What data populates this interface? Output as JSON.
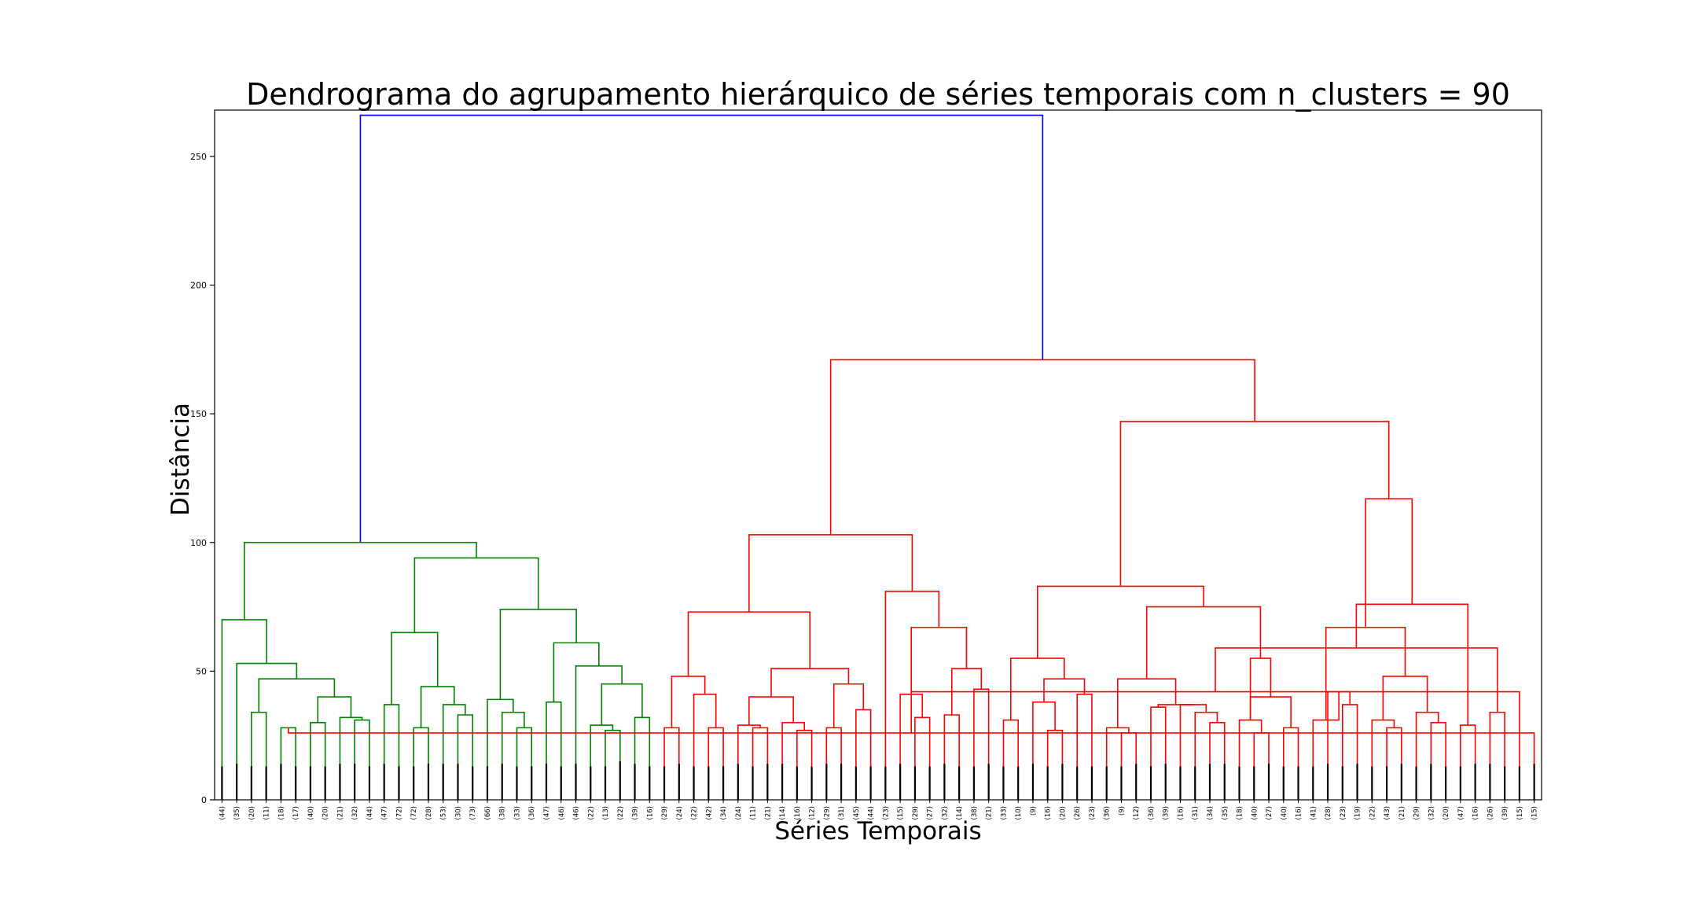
{
  "chart_data": {
    "type": "dendrogram",
    "title": "Dendrograma do agrupamento hierárquico de séries temporais com n_clusters = 90",
    "xlabel": "Séries Temporais",
    "ylabel": "Distância",
    "ylim": [
      0,
      268
    ],
    "yticks": [
      0,
      50,
      100,
      150,
      200,
      250
    ],
    "grid": false,
    "colors": {
      "link_root": "#0000ff",
      "cluster_a": "#008000",
      "cluster_b": "#ff0000",
      "leaf_marks": "#000000"
    },
    "leaf_labels": [
      "(44)",
      "(35)",
      "(20)",
      "(11)",
      "(18)",
      "(17)",
      "(40)",
      "(20)",
      "(21)",
      "(32)",
      "(44)",
      "(47)",
      "(72)",
      "(72)",
      "(28)",
      "(53)",
      "(30)",
      "(73)",
      "(66)",
      "(38)",
      "(33)",
      "(36)",
      "(47)",
      "(46)",
      "(46)",
      "(22)",
      "(13)",
      "(22)",
      "(39)",
      "(16)",
      "(29)",
      "(24)",
      "(22)",
      "(42)",
      "(34)",
      "(24)",
      "(11)",
      "(21)",
      "(14)",
      "(16)",
      "(12)",
      "(29)",
      "(31)",
      "(45)",
      "(44)",
      "(23)",
      "(15)",
      "(29)",
      "(27)",
      "(32)",
      "(14)",
      "(38)",
      "(21)",
      "(33)",
      "(10)",
      "(9)",
      "(16)",
      "(20)",
      "(26)",
      "(23)",
      "(36)",
      "(9)",
      "(12)",
      "(36)",
      "(39)",
      "(16)",
      "(31)",
      "(34)",
      "(35)",
      "(18)",
      "(40)",
      "(27)",
      "(40)",
      "(16)",
      "(41)",
      "(28)",
      "(23)",
      "(19)",
      "(22)",
      "(43)",
      "(21)",
      "(29)",
      "(32)",
      "(20)",
      "(47)",
      "(16)",
      "(26)",
      "(39)",
      "(15)",
      "(15)"
    ],
    "leaf_heights": [
      13,
      14,
      13,
      13,
      14,
      13,
      13,
      13,
      14,
      14,
      13,
      14,
      13,
      13,
      14,
      14,
      14,
      13,
      13,
      14,
      13,
      13,
      14,
      13,
      14,
      13,
      13,
      15,
      14,
      13,
      13,
      14,
      13,
      13,
      13,
      14,
      13,
      14,
      14,
      13,
      13,
      14,
      14,
      13,
      13,
      13,
      14,
      13,
      13,
      14,
      13,
      13,
      14,
      13,
      13,
      14,
      13,
      14,
      13,
      13,
      13,
      13,
      14,
      13,
      14,
      13,
      13,
      14,
      14,
      13,
      13,
      14,
      13,
      13,
      13,
      14,
      13,
      14,
      13,
      13,
      14,
      13,
      14,
      13,
      13,
      14,
      14,
      13,
      13,
      14
    ],
    "merges": [
      {
        "left": 4,
        "right": 5,
        "height": 28,
        "color": "green"
      },
      {
        "left": 2,
        "right": 3,
        "height": 34,
        "color": "green"
      },
      {
        "left": 6,
        "right": 7,
        "height": 30,
        "color": "green"
      },
      {
        "left": 9,
        "right": 10,
        "height": 31,
        "color": "green"
      },
      {
        "left": 8,
        "right": 93,
        "height": 32,
        "color": "green"
      },
      {
        "left": 92,
        "right": 94,
        "height": 40,
        "color": "green"
      },
      {
        "left": 91,
        "right": 95,
        "height": 47,
        "color": "green"
      },
      {
        "left": 1,
        "right": 96,
        "height": 53,
        "color": "green"
      },
      {
        "left": 0,
        "right": 97,
        "height": 70,
        "color": "green"
      },
      {
        "left": 11,
        "right": 12,
        "height": 37,
        "color": "green"
      },
      {
        "left": 13,
        "right": 14,
        "height": 28,
        "color": "green"
      },
      {
        "left": 16,
        "right": 17,
        "height": 33,
        "color": "green"
      },
      {
        "left": 15,
        "right": 101,
        "height": 37,
        "color": "green"
      },
      {
        "left": 100,
        "right": 102,
        "height": 44,
        "color": "green"
      },
      {
        "left": 99,
        "right": 103,
        "height": 65,
        "color": "green"
      },
      {
        "left": 20,
        "right": 21,
        "height": 28,
        "color": "green"
      },
      {
        "left": 19,
        "right": 105,
        "height": 34,
        "color": "green"
      },
      {
        "left": 18,
        "right": 106,
        "height": 39,
        "color": "green"
      },
      {
        "left": 22,
        "right": 23,
        "height": 38,
        "color": "green"
      },
      {
        "left": 26,
        "right": 27,
        "height": 27,
        "color": "green"
      },
      {
        "left": 25,
        "right": 109,
        "height": 29,
        "color": "green"
      },
      {
        "left": 28,
        "right": 29,
        "height": 32,
        "color": "green"
      },
      {
        "left": 110,
        "right": 111,
        "height": 45,
        "color": "green"
      },
      {
        "left": 24,
        "right": 112,
        "height": 52,
        "color": "green"
      },
      {
        "left": 108,
        "right": 113,
        "height": 61,
        "color": "green"
      },
      {
        "left": 107,
        "right": 114,
        "height": 74,
        "color": "green"
      },
      {
        "left": 104,
        "right": 115,
        "height": 94,
        "color": "green"
      },
      {
        "left": 98,
        "right": 116,
        "height": 100,
        "color": "green"
      },
      {
        "left": 30,
        "right": 31,
        "height": 28,
        "color": "red"
      },
      {
        "left": 33,
        "right": 34,
        "height": 28,
        "color": "red"
      },
      {
        "left": 32,
        "right": 119,
        "height": 41,
        "color": "red"
      },
      {
        "left": 118,
        "right": 120,
        "height": 48,
        "color": "red"
      },
      {
        "left": 36,
        "right": 37,
        "height": 28,
        "color": "red"
      },
      {
        "left": 35,
        "right": 122,
        "height": 29,
        "color": "red"
      },
      {
        "left": 39,
        "right": 40,
        "height": 27,
        "color": "red"
      },
      {
        "left": 38,
        "right": 124,
        "height": 30,
        "color": "red"
      },
      {
        "left": 123,
        "right": 125,
        "height": 40,
        "color": "red"
      },
      {
        "left": 41,
        "right": 42,
        "height": 28,
        "color": "red"
      },
      {
        "left": 43,
        "right": 44,
        "height": 35,
        "color": "red"
      },
      {
        "left": 127,
        "right": 128,
        "height": 45,
        "color": "red"
      },
      {
        "left": 126,
        "right": 129,
        "height": 51,
        "color": "red"
      },
      {
        "left": 121,
        "right": 130,
        "height": 73,
        "color": "red"
      },
      {
        "left": 47,
        "right": 48,
        "height": 32,
        "color": "red"
      },
      {
        "left": 46,
        "right": 132,
        "height": 41,
        "color": "red"
      },
      {
        "left": 49,
        "right": 50,
        "height": 33,
        "color": "red"
      },
      {
        "left": 51,
        "right": 52,
        "height": 43,
        "color": "red"
      },
      {
        "left": 134,
        "right": 135,
        "height": 51,
        "color": "red"
      },
      {
        "left": 133,
        "right": 136,
        "height": 67,
        "color": "red"
      },
      {
        "left": 45,
        "right": 137,
        "height": 81,
        "color": "red"
      },
      {
        "left": 131,
        "right": 138,
        "height": 103,
        "color": "red"
      },
      {
        "left": 56,
        "right": 57,
        "height": 27,
        "color": "red"
      },
      {
        "left": 55,
        "right": 140,
        "height": 38,
        "color": "red"
      },
      {
        "left": 58,
        "right": 59,
        "height": 41,
        "color": "red"
      },
      {
        "left": 141,
        "right": 142,
        "height": 47,
        "color": "red"
      },
      {
        "left": 53,
        "right": 54,
        "height": 31,
        "color": "red"
      },
      {
        "left": 144,
        "right": 143,
        "height": 55,
        "color": "red"
      },
      {
        "left": 61,
        "right": 62,
        "height": 26,
        "color": "red"
      },
      {
        "left": 60,
        "right": 146,
        "height": 28,
        "color": "red"
      },
      {
        "left": 67,
        "right": 68,
        "height": 30,
        "color": "red"
      },
      {
        "left": 66,
        "right": 148,
        "height": 34,
        "color": "red"
      },
      {
        "left": 65,
        "right": 149,
        "height": 37,
        "color": "red"
      },
      {
        "left": 63,
        "right": 64,
        "height": 36,
        "color": "red"
      },
      {
        "left": 151,
        "right": 150,
        "height": 37,
        "color": "red"
      },
      {
        "left": 147,
        "right": 152,
        "height": 47,
        "color": "red"
      },
      {
        "left": 70,
        "right": 71,
        "height": 26,
        "color": "red"
      },
      {
        "left": 69,
        "right": 154,
        "height": 31,
        "color": "red"
      },
      {
        "left": 72,
        "right": 73,
        "height": 28,
        "color": "red"
      },
      {
        "left": 155,
        "right": 156,
        "height": 40,
        "color": "red"
      },
      {
        "left": 155,
        "right": 157,
        "height": 55,
        "color": "red"
      },
      {
        "left": 153,
        "right": 158,
        "height": 75,
        "color": "red"
      },
      {
        "left": 145,
        "right": 159,
        "height": 83,
        "color": "red"
      },
      {
        "left": 76,
        "right": 77,
        "height": 37,
        "color": "red"
      },
      {
        "left": 75,
        "right": 161,
        "height": 42,
        "color": "red"
      },
      {
        "left": 74,
        "right": 162,
        "height": 31,
        "color": "red"
      },
      {
        "left": 79,
        "right": 80,
        "height": 28,
        "color": "red"
      },
      {
        "left": 78,
        "right": 164,
        "height": 31,
        "color": "red"
      },
      {
        "left": 82,
        "right": 83,
        "height": 30,
        "color": "red"
      },
      {
        "left": 81,
        "right": 166,
        "height": 34,
        "color": "red"
      },
      {
        "left": 165,
        "right": 167,
        "height": 48,
        "color": "red"
      },
      {
        "left": 163,
        "right": 168,
        "height": 67,
        "color": "red"
      },
      {
        "left": 84,
        "right": 85,
        "height": 29,
        "color": "red"
      },
      {
        "left": 86,
        "right": 87,
        "height": 34,
        "color": "red"
      },
      {
        "left": 89,
        "right": 90,
        "height": 26,
        "color": "red"
      },
      {
        "left": 88,
        "right": 172,
        "height": 42,
        "color": "red"
      },
      {
        "left": 171,
        "right": 173,
        "height": 59,
        "color": "red"
      },
      {
        "left": 170,
        "right": 174,
        "height": 76,
        "color": "red"
      },
      {
        "left": 169,
        "right": 175,
        "height": 117,
        "color": "red"
      },
      {
        "left": 160,
        "right": 176,
        "height": 147,
        "color": "red"
      },
      {
        "left": 139,
        "right": 177,
        "height": 171,
        "color": "red"
      },
      {
        "left": 117,
        "right": 178,
        "height": 266,
        "color": "blue"
      }
    ]
  }
}
